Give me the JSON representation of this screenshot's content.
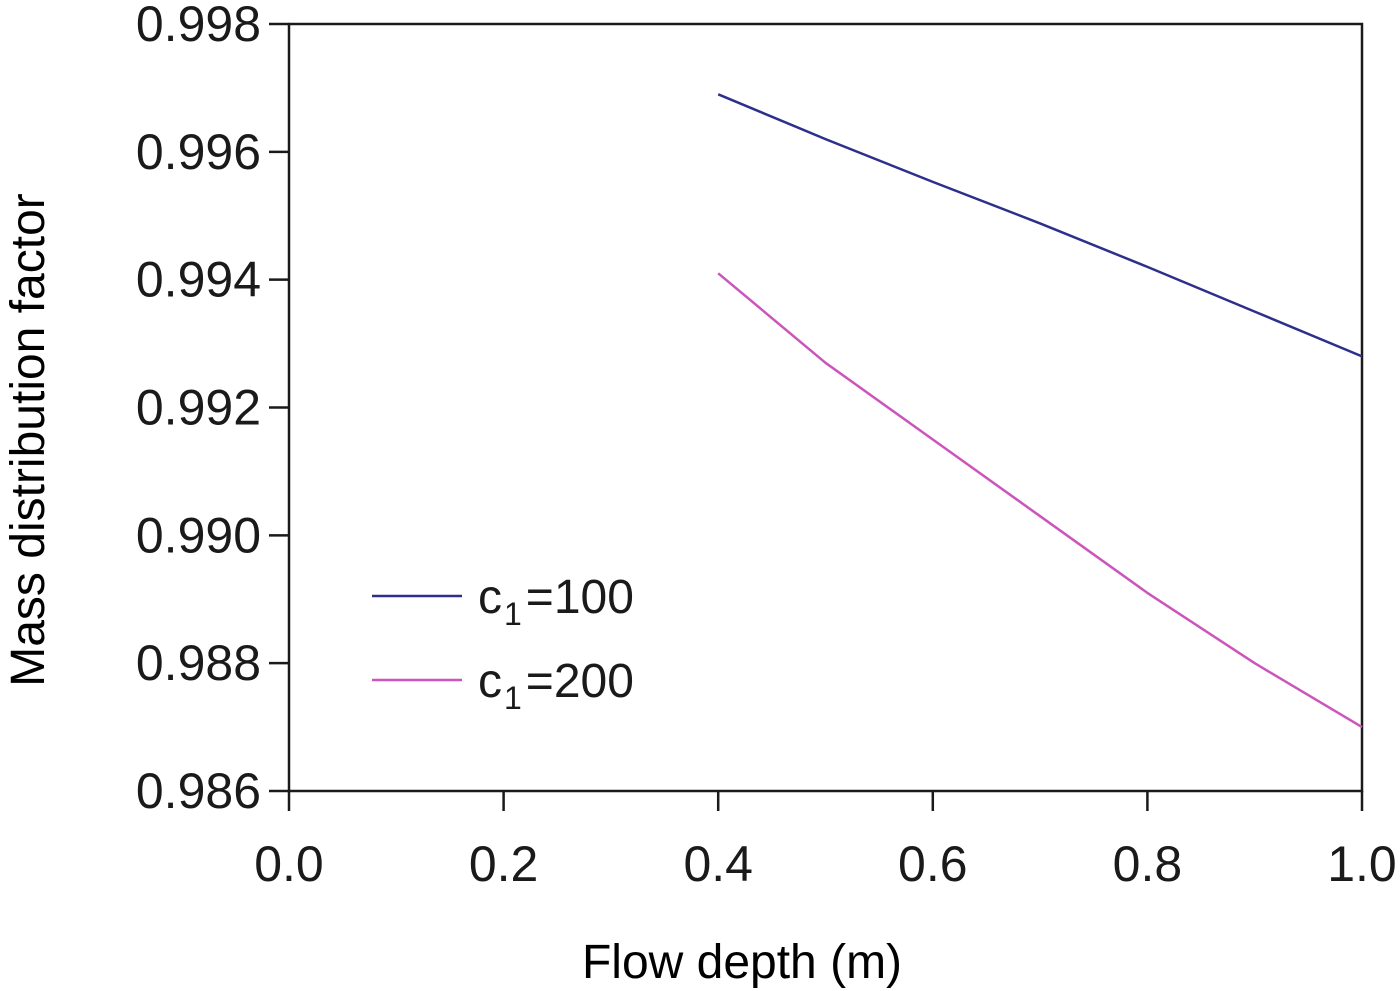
{
  "chart_data": {
    "type": "line",
    "title": "",
    "xlabel": "Flow depth (m)",
    "ylabel": "Mass distribution factor",
    "xlim": [
      0.0,
      1.0
    ],
    "ylim": [
      0.986,
      0.998
    ],
    "xticks": [
      0.0,
      0.2,
      0.4,
      0.6,
      0.8,
      1.0
    ],
    "xtick_labels": [
      "0.0",
      "0.2",
      "0.4",
      "0.6",
      "0.8",
      "1.0"
    ],
    "yticks": [
      0.986,
      0.988,
      0.99,
      0.992,
      0.994,
      0.996,
      0.998
    ],
    "ytick_labels": [
      "0.986",
      "0.988",
      "0.990",
      "0.992",
      "0.994",
      "0.996",
      "0.998"
    ],
    "grid": false,
    "legend_position": "lower-left",
    "series": [
      {
        "name_main": "c",
        "name_sub": "1",
        "name_rest": "=100",
        "color": "#2e2e8c",
        "x": [
          0.4,
          0.5,
          0.6,
          0.7,
          0.8,
          0.9,
          1.0
        ],
        "y": [
          0.9969,
          0.9962,
          0.99553,
          0.99488,
          0.9942,
          0.9935,
          0.9928
        ]
      },
      {
        "name_main": "c",
        "name_sub": "1",
        "name_rest": "=200",
        "color": "#cc55bb",
        "x": [
          0.4,
          0.5,
          0.6,
          0.7,
          0.8,
          0.9,
          1.0
        ],
        "y": [
          0.9941,
          0.9927,
          0.9915,
          0.9903,
          0.9891,
          0.988,
          0.987
        ]
      }
    ]
  }
}
